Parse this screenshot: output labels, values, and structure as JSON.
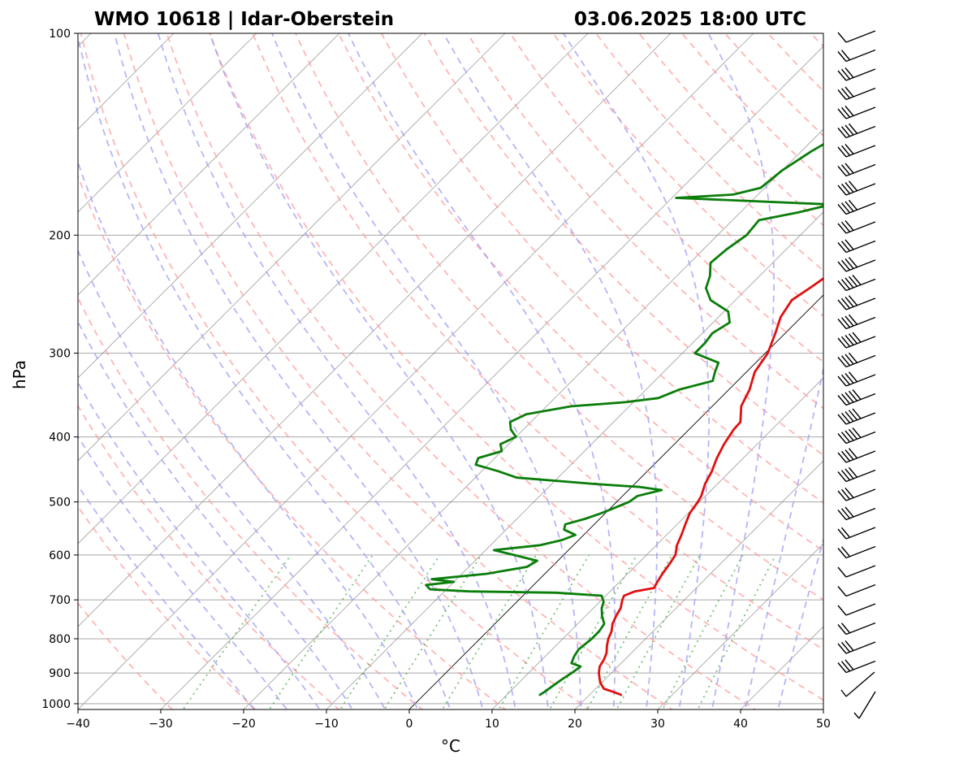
{
  "chart_data": {
    "type": "line",
    "diagram": "skew-t log-p",
    "title_left": "WMO 10618 | Idar-Oberstein",
    "title_right": "03.06.2025 18:00 UTC",
    "xlabel": "°C",
    "ylabel": "hPa",
    "xlim": [
      -40,
      50
    ],
    "ylim": [
      1020,
      100
    ],
    "y_scale": "log",
    "grid": true,
    "x_ticks": [
      -40,
      -30,
      -20,
      -10,
      0,
      10,
      20,
      30,
      40,
      50
    ],
    "x_tick_labels": [
      "−40",
      "−30",
      "−20",
      "−10",
      "0",
      "10",
      "20",
      "30",
      "40",
      "50"
    ],
    "y_ticks": [
      1000,
      900,
      800,
      700,
      600,
      500,
      400,
      300,
      200,
      100
    ],
    "y_tick_labels": [
      "1000",
      "900",
      "800",
      "700",
      "600",
      "500",
      "400",
      "300",
      "200",
      "100"
    ],
    "colors": {
      "temperature": "#e01010",
      "dewpoint": "#0a7d0a",
      "dry_adiabats": "#ff9c9c",
      "moist_adiabats": "#9c9cf5",
      "mixing_ratio": "#66bb66",
      "isotherms": "#808080",
      "isobars": "#a8a8a8",
      "zero_isotherm": "#000000"
    },
    "series": [
      {
        "key": "temperature",
        "points": [
          [
            970,
            23.8
          ],
          [
            960,
            22.5
          ],
          [
            950,
            21
          ],
          [
            930,
            19.8
          ],
          [
            900,
            18.5
          ],
          [
            880,
            17.8
          ],
          [
            860,
            17.5
          ],
          [
            840,
            17
          ],
          [
            820,
            16.2
          ],
          [
            800,
            15.5
          ],
          [
            780,
            15
          ],
          [
            760,
            14.2
          ],
          [
            740,
            13.7
          ],
          [
            720,
            13.3
          ],
          [
            700,
            12.5
          ],
          [
            690,
            12.2
          ],
          [
            680,
            13
          ],
          [
            672,
            14.9
          ],
          [
            660,
            14.6
          ],
          [
            640,
            14.2
          ],
          [
            620,
            13.9
          ],
          [
            600,
            13.5
          ],
          [
            580,
            12.5
          ],
          [
            560,
            11.8
          ],
          [
            540,
            11
          ],
          [
            520,
            10.2
          ],
          [
            500,
            9.8
          ],
          [
            490,
            9.5
          ],
          [
            470,
            8.5
          ],
          [
            450,
            7.8
          ],
          [
            430,
            6.8
          ],
          [
            410,
            6
          ],
          [
            390,
            5.4
          ],
          [
            380,
            5.3
          ],
          [
            360,
            3.5
          ],
          [
            340,
            2.5
          ],
          [
            320,
            1
          ],
          [
            300,
            0.3
          ],
          [
            280,
            -1.2
          ],
          [
            265,
            -2.5
          ],
          [
            250,
            -3.2
          ],
          [
            240,
            -2.5
          ],
          [
            225,
            -1.5
          ],
          [
            210,
            -1
          ],
          [
            195,
            -0.8
          ],
          [
            185,
            -0.5
          ],
          [
            175,
            1.5
          ],
          [
            165,
            2.3
          ],
          [
            155,
            4
          ],
          [
            145,
            5
          ],
          [
            135,
            7
          ],
          [
            125,
            8.5
          ],
          [
            117,
            10.5
          ],
          [
            110,
            13.5
          ],
          [
            105,
            15.3
          ],
          [
            100,
            16.2
          ]
        ]
      },
      {
        "key": "dewpoint",
        "points": [
          [
            970,
            14
          ],
          [
            960,
            14.2
          ],
          [
            940,
            14.5
          ],
          [
            920,
            14.8
          ],
          [
            900,
            15.2
          ],
          [
            880,
            15.5
          ],
          [
            870,
            14
          ],
          [
            850,
            13.5
          ],
          [
            830,
            13.2
          ],
          [
            800,
            13.5
          ],
          [
            780,
            13.5
          ],
          [
            760,
            13.2
          ],
          [
            740,
            12
          ],
          [
            720,
            11
          ],
          [
            705,
            10.5
          ],
          [
            690,
            9.5
          ],
          [
            683,
            3.7
          ],
          [
            680,
            -7
          ],
          [
            675,
            -12
          ],
          [
            665,
            -13
          ],
          [
            658,
            -10
          ],
          [
            652,
            -13
          ],
          [
            640,
            -7
          ],
          [
            625,
            -3
          ],
          [
            612,
            -2.5
          ],
          [
            600,
            -6
          ],
          [
            590,
            -9
          ],
          [
            580,
            -4
          ],
          [
            570,
            -2
          ],
          [
            560,
            -1
          ],
          [
            550,
            -3
          ],
          [
            540,
            -3.5
          ],
          [
            530,
            -1.8
          ],
          [
            520,
            -0.5
          ],
          [
            510,
            0.5
          ],
          [
            500,
            1.5
          ],
          [
            490,
            1.8
          ],
          [
            480,
            4
          ],
          [
            475,
            1
          ],
          [
            470,
            -5
          ],
          [
            460,
            -15
          ],
          [
            450,
            -18
          ],
          [
            440,
            -21.5
          ],
          [
            430,
            -22
          ],
          [
            420,
            -20
          ],
          [
            410,
            -21
          ],
          [
            400,
            -20
          ],
          [
            390,
            -21.5
          ],
          [
            380,
            -22.5
          ],
          [
            370,
            -21.5
          ],
          [
            360,
            -17
          ],
          [
            355,
            -11
          ],
          [
            350,
            -7.5
          ],
          [
            340,
            -6
          ],
          [
            330,
            -3
          ],
          [
            320,
            -3.8
          ],
          [
            310,
            -4.5
          ],
          [
            300,
            -8.5
          ],
          [
            290,
            -8.5
          ],
          [
            280,
            -8.8
          ],
          [
            270,
            -8
          ],
          [
            260,
            -9.5
          ],
          [
            250,
            -13
          ],
          [
            240,
            -15
          ],
          [
            230,
            -16
          ],
          [
            220,
            -17.5
          ],
          [
            210,
            -17.2
          ],
          [
            200,
            -16.5
          ],
          [
            190,
            -16.8
          ],
          [
            185,
            -13
          ],
          [
            180,
            -10
          ],
          [
            176,
            -29.5
          ],
          [
            174,
            -23
          ],
          [
            170,
            -20.5
          ],
          [
            160,
            -20
          ],
          [
            150,
            -18.8
          ],
          [
            140,
            -17
          ],
          [
            130,
            -15.2
          ],
          [
            120,
            -14
          ],
          [
            110,
            -11.8
          ],
          [
            100,
            -9.2
          ]
        ]
      }
    ],
    "wind_barbs": {
      "description": "wind barbs along right margin (westerly flow, 10–45 kt)"
    }
  }
}
